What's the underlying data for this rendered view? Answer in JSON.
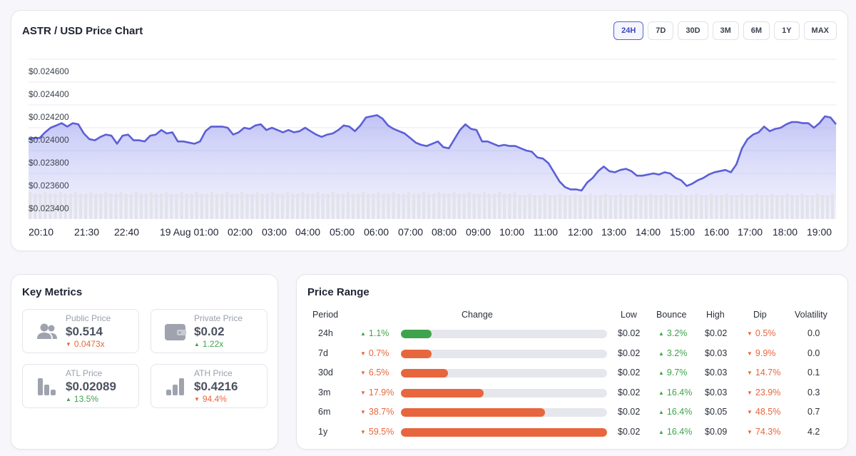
{
  "chart": {
    "title": "ASTR / USD Price Chart",
    "timeframes": [
      "24H",
      "7D",
      "30D",
      "3M",
      "6M",
      "1Y",
      "MAX"
    ],
    "active_timeframe": "24H",
    "line_color": "#5b5fd6"
  },
  "chart_data": {
    "type": "area",
    "title": "ASTR / USD Price Chart",
    "xlabel": "",
    "ylabel": "",
    "y_ticks": [
      "$0.023400",
      "$0.023600",
      "$0.023800",
      "$0.024000",
      "$0.024200",
      "$0.024400",
      "$0.024600"
    ],
    "x_ticks": [
      "20:10",
      "21:30",
      "22:40",
      "19 Aug 01:00",
      "02:00",
      "03:00",
      "04:00",
      "05:00",
      "06:00",
      "07:00",
      "08:00",
      "09:00",
      "10:00",
      "11:00",
      "12:00",
      "13:00",
      "14:00",
      "15:00",
      "16:00",
      "17:00",
      "18:00",
      "19:00"
    ],
    "ylim": [
      0.0233,
      0.0247
    ],
    "grid": true,
    "series": [
      {
        "values": [
          0.024,
          0.02401,
          0.02401,
          0.02406,
          0.0241,
          0.02412,
          0.02414,
          0.02411,
          0.02414,
          0.02413,
          0.02405,
          0.024,
          0.02399,
          0.02402,
          0.02404,
          0.02403,
          0.02396,
          0.02403,
          0.02404,
          0.02399,
          0.02399,
          0.02398,
          0.02403,
          0.02404,
          0.02408,
          0.02405,
          0.02406,
          0.02398,
          0.02398,
          0.02397,
          0.02396,
          0.02398,
          0.02407,
          0.02411,
          0.02411,
          0.02411,
          0.0241,
          0.02404,
          0.02406,
          0.0241,
          0.02409,
          0.02412,
          0.02413,
          0.02408,
          0.0241,
          0.02408,
          0.02406,
          0.02408,
          0.02406,
          0.02407,
          0.0241,
          0.02407,
          0.02404,
          0.02402,
          0.02404,
          0.02405,
          0.02408,
          0.02412,
          0.02411,
          0.02407,
          0.02412,
          0.02419,
          0.0242,
          0.02421,
          0.02418,
          0.02412,
          0.02409,
          0.02407,
          0.02405,
          0.02401,
          0.02397,
          0.02395,
          0.02394,
          0.02396,
          0.02398,
          0.02393,
          0.02392,
          0.024,
          0.02408,
          0.02413,
          0.02409,
          0.02408,
          0.02398,
          0.02398,
          0.02396,
          0.02394,
          0.02395,
          0.02394,
          0.02394,
          0.02392,
          0.0239,
          0.02389,
          0.02384,
          0.02383,
          0.02379,
          0.02371,
          0.02363,
          0.02358,
          0.02356,
          0.02356,
          0.02355,
          0.02362,
          0.02366,
          0.02372,
          0.02376,
          0.02372,
          0.02371,
          0.02373,
          0.02374,
          0.02372,
          0.02368,
          0.02368,
          0.02369,
          0.0237,
          0.02369,
          0.02371,
          0.0237,
          0.02366,
          0.02364,
          0.02359,
          0.02361,
          0.02364,
          0.02366,
          0.02369,
          0.02371,
          0.02372,
          0.02373,
          0.02371,
          0.02378,
          0.02392,
          0.024,
          0.02404,
          0.02406,
          0.02411,
          0.02407,
          0.02409,
          0.0241,
          0.02413,
          0.02415,
          0.02415,
          0.02414,
          0.02414,
          0.0241,
          0.02414,
          0.0242,
          0.02419,
          0.02413
        ]
      }
    ]
  },
  "metrics": {
    "title": "Key Metrics",
    "items": [
      {
        "label": "Public Price",
        "value": "$0.514",
        "change": "0.0473x",
        "dir": "down",
        "icon": "users-icon"
      },
      {
        "label": "Private Price",
        "value": "$0.02",
        "change": "1.22x",
        "dir": "up",
        "icon": "wallet-icon"
      },
      {
        "label": "ATL Price",
        "value": "$0.02089",
        "change": "13.5%",
        "dir": "up",
        "icon": "bar-chart-down-icon"
      },
      {
        "label": "ATH Price",
        "value": "$0.4216",
        "change": "94.4%",
        "dir": "down",
        "icon": "bar-chart-up-icon"
      }
    ]
  },
  "range": {
    "title": "Price Range",
    "headers": {
      "period": "Period",
      "change": "Change",
      "low": "Low",
      "bounce": "Bounce",
      "high": "High",
      "dip": "Dip",
      "volatility": "Volatility"
    },
    "colors": {
      "up": "#3fa34d",
      "down": "#e8663d"
    },
    "rows": [
      {
        "period": "24h",
        "change": "1.1%",
        "change_dir": "up",
        "bar_pct": 15,
        "low": "$0.02",
        "bounce": "3.2%",
        "high": "$0.02",
        "dip": "0.5%",
        "volatility": "0.0"
      },
      {
        "period": "7d",
        "change": "0.7%",
        "change_dir": "down",
        "bar_pct": 15,
        "low": "$0.02",
        "bounce": "3.2%",
        "high": "$0.03",
        "dip": "9.9%",
        "volatility": "0.0"
      },
      {
        "period": "30d",
        "change": "6.5%",
        "change_dir": "down",
        "bar_pct": 23,
        "low": "$0.02",
        "bounce": "9.7%",
        "high": "$0.03",
        "dip": "14.7%",
        "volatility": "0.1"
      },
      {
        "period": "3m",
        "change": "17.9%",
        "change_dir": "down",
        "bar_pct": 40,
        "low": "$0.02",
        "bounce": "16.4%",
        "high": "$0.03",
        "dip": "23.9%",
        "volatility": "0.3"
      },
      {
        "period": "6m",
        "change": "38.7%",
        "change_dir": "down",
        "bar_pct": 70,
        "low": "$0.02",
        "bounce": "16.4%",
        "high": "$0.05",
        "dip": "48.5%",
        "volatility": "0.7"
      },
      {
        "period": "1y",
        "change": "59.5%",
        "change_dir": "down",
        "bar_pct": 100,
        "low": "$0.02",
        "bounce": "16.4%",
        "high": "$0.09",
        "dip": "74.3%",
        "volatility": "4.2"
      }
    ]
  }
}
